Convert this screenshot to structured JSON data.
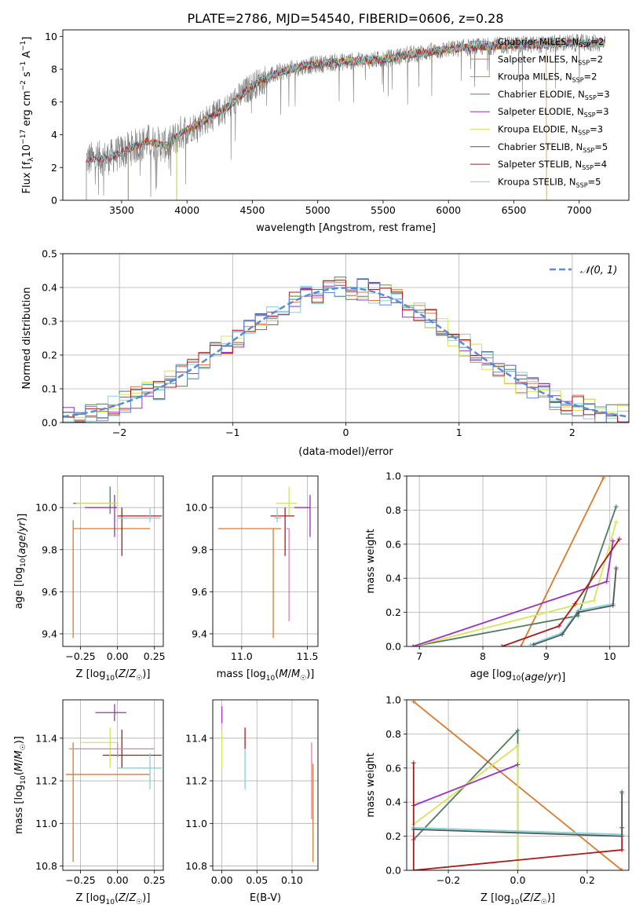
{
  "figure_title": "PLATE=2786, MJD=54540, FIBERID=0606, z=0.28",
  "colors": {
    "chabrier_miles": "#5b8bd4",
    "salpeter_miles": "#e8743b",
    "kroupa_miles": "#c58f2a",
    "chabrier_elodie": "#4f7d5e",
    "salpeter_elodie": "#9b30c0",
    "kroupa_elodie": "#d6e55a",
    "chabrier_stelib": "#555555",
    "salpeter_stelib": "#b01818",
    "kroupa_stelib": "#7ed3dc",
    "gaussian": "#5b8bd4",
    "orange": "#d97a2e",
    "pink": "#e87aa8"
  },
  "chart_data": [
    {
      "id": "spectrum",
      "type": "line",
      "xlabel": "wavelength [Angstrom, rest frame]",
      "ylabel": "Flux [f",
      "ylabel_sub": "λ",
      "ylabel_rest": "10",
      "ylabel_exp": "−17",
      "ylabel_unit": " erg cm",
      "ylabel_unit_exp": "−2",
      "ylabel_s": " s",
      "ylabel_s_exp": "−1",
      "ylabel_a": " A",
      "ylabel_a_exp": "−1",
      "ylabel_close": "]",
      "xlim": [
        3050,
        7380
      ],
      "ylim": [
        0,
        10.4
      ],
      "xticks": [
        3500,
        4000,
        4500,
        5000,
        5500,
        6000,
        6500,
        7000
      ],
      "yticks": [
        0,
        2,
        4,
        6,
        8,
        10
      ],
      "continuum": [
        [
          3230,
          2.5
        ],
        [
          3400,
          2.6
        ],
        [
          3550,
          3.1
        ],
        [
          3700,
          3.6
        ],
        [
          3850,
          3.3
        ],
        [
          3950,
          4.1
        ],
        [
          4100,
          4.7
        ],
        [
          4300,
          5.6
        ],
        [
          4500,
          7.0
        ],
        [
          4700,
          7.8
        ],
        [
          4900,
          8.2
        ],
        [
          5100,
          8.4
        ],
        [
          5300,
          8.5
        ],
        [
          5500,
          8.6
        ],
        [
          5700,
          8.9
        ],
        [
          5900,
          9.1
        ],
        [
          6100,
          9.3
        ],
        [
          6300,
          9.4
        ],
        [
          6500,
          9.5
        ],
        [
          6700,
          9.5
        ],
        [
          6900,
          9.6
        ],
        [
          7100,
          9.6
        ],
        [
          7200,
          9.6
        ]
      ],
      "legend": [
        {
          "imf": "Chabrier MILES, N",
          "n": "=2",
          "color_key": "chabrier_miles"
        },
        {
          "imf": "Salpeter MILES, N",
          "n": "=2",
          "color_key": "salpeter_miles"
        },
        {
          "imf": "Kroupa MILES, N",
          "n": "=2",
          "color_key": "kroupa_miles"
        },
        {
          "imf": "Chabrier ELODIE, N",
          "n": "=3",
          "color_key": "chabrier_elodie"
        },
        {
          "imf": "Salpeter ELODIE, N",
          "n": "=3",
          "color_key": "salpeter_elodie"
        },
        {
          "imf": "Kroupa ELODIE, N",
          "n": "=3",
          "color_key": "kroupa_elodie"
        },
        {
          "imf": "Chabrier STELIB, N",
          "n": "=5",
          "color_key": "chabrier_stelib"
        },
        {
          "imf": "Salpeter STELIB, N",
          "n": "=4",
          "color_key": "salpeter_stelib"
        },
        {
          "imf": "Kroupa STELIB, N",
          "n": "=5",
          "color_key": "kroupa_stelib"
        }
      ],
      "legend_sub": "SSP",
      "legend_placement": "right",
      "grid": false
    },
    {
      "id": "residuals",
      "type": "histogram",
      "xlabel": "(data-model)/error",
      "ylabel": "Normed distribution",
      "xlim": [
        -2.5,
        2.5
      ],
      "ylim": [
        0,
        0.5
      ],
      "xticks": [
        -2,
        -1,
        0,
        1,
        2
      ],
      "xtick_labels": [
        "−2",
        "−1",
        "0",
        "1",
        "2"
      ],
      "yticks": [
        0.0,
        0.1,
        0.2,
        0.3,
        0.4,
        0.5
      ],
      "ytick_labels": [
        "0.0",
        "0.1",
        "0.2",
        "0.3",
        "0.4",
        "0.5"
      ],
      "legend_label": "𝒩(0, 1)",
      "legend_placement": "top-right",
      "grid": true,
      "bin_width": 0.1
    },
    {
      "id": "age_vs_z",
      "type": "errorbar",
      "xlabel": "Z [log",
      "xlabel_sub": "10",
      "xlabel_rest": "(Z/Z",
      "xlabel_sun_sub": "☉",
      "xlabel_close": ")]",
      "ylabel": "age  [log",
      "ylabel_sub": "10",
      "ylabel_rest": "(age/yr)]",
      "xlim": [
        -0.37,
        0.31
      ],
      "ylim": [
        9.34,
        10.15
      ],
      "xticks": [
        -0.25,
        0.0,
        0.25
      ],
      "xtick_labels": [
        "−0.25",
        "0.00",
        "0.25"
      ],
      "yticks": [
        9.4,
        9.6,
        9.8,
        10.0
      ],
      "ytick_labels": [
        "9.4",
        "9.6",
        "9.8",
        "10.0"
      ],
      "points": [
        {
          "x": -0.05,
          "y": 10.02,
          "xlo": -0.3,
          "xhi": 0.0,
          "ylo": 9.97,
          "yhi": 10.1,
          "color_key": "chabrier_elodie"
        },
        {
          "x": -0.3,
          "y": 9.9,
          "xlo": -0.3,
          "xhi": 0.22,
          "ylo": 9.38,
          "yhi": 9.94,
          "color_key": "orange"
        },
        {
          "x": 0.03,
          "y": 9.96,
          "xlo": 0.0,
          "xhi": 0.3,
          "ylo": 9.77,
          "yhi": 10.0,
          "color_key": "salpeter_stelib"
        },
        {
          "x": 0.22,
          "y": 9.95,
          "xlo": 0.0,
          "xhi": 0.29,
          "ylo": 9.93,
          "yhi": 10.0,
          "color_key": "kroupa_stelib"
        },
        {
          "x": -0.02,
          "y": 10.0,
          "xlo": -0.22,
          "xhi": 0.0,
          "ylo": 9.86,
          "yhi": 10.06,
          "color_key": "salpeter_elodie"
        },
        {
          "x": 0.0,
          "y": 10.02,
          "xlo": -0.28,
          "xhi": 0.0,
          "ylo": 9.96,
          "yhi": 10.1,
          "color_key": "kroupa_elodie"
        }
      ]
    },
    {
      "id": "age_vs_mass",
      "type": "errorbar",
      "xlabel": "mass [log",
      "xlabel_sub": "10",
      "xlabel_rest": "(M/M",
      "xlabel_sun_sub": "☉",
      "xlabel_close": ")]",
      "xlim": [
        10.78,
        11.58
      ],
      "ylim": [
        9.34,
        10.15
      ],
      "xticks": [
        11.0,
        11.5
      ],
      "xtick_labels": [
        "11.0",
        "11.5"
      ],
      "yticks": [
        9.4,
        9.6,
        9.8,
        10.0
      ],
      "ytick_labels": [
        "9.4",
        "9.6",
        "9.8",
        "10.0"
      ],
      "points": [
        {
          "x": 11.24,
          "y": 9.9,
          "xlo": 10.82,
          "xhi": 11.3,
          "ylo": 9.38,
          "yhi": 9.9,
          "color_key": "orange"
        },
        {
          "x": 11.36,
          "y": 10.02,
          "xlo": 11.26,
          "xhi": 11.42,
          "ylo": 9.96,
          "yhi": 10.1,
          "color_key": "kroupa_elodie"
        },
        {
          "x": 11.33,
          "y": 9.96,
          "xlo": 11.22,
          "xhi": 11.4,
          "ylo": 9.77,
          "yhi": 10.0,
          "color_key": "salpeter_stelib"
        },
        {
          "x": 11.27,
          "y": 9.95,
          "xlo": 11.25,
          "xhi": 11.3,
          "ylo": 9.93,
          "yhi": 10.0,
          "color_key": "kroupa_stelib"
        },
        {
          "x": 11.52,
          "y": 10.0,
          "xlo": 11.4,
          "xhi": 11.52,
          "ylo": 9.86,
          "yhi": 10.06,
          "color_key": "salpeter_elodie"
        },
        {
          "x": 11.36,
          "y": 9.9,
          "xlo": 11.34,
          "xhi": 11.36,
          "ylo": 9.46,
          "yhi": 9.9,
          "color_key": "pink"
        }
      ]
    },
    {
      "id": "weight_vs_age",
      "type": "line",
      "xlabel": "age  [log",
      "xlabel_sub": "10",
      "xlabel_rest": "(age/yr)]",
      "ylabel": "mass weight",
      "xlim": [
        6.8,
        10.3
      ],
      "ylim": [
        0,
        1.0
      ],
      "xticks": [
        7,
        8,
        9,
        10
      ],
      "yticks": [
        0.0,
        0.2,
        0.4,
        0.6,
        0.8,
        1.0
      ],
      "ytick_labels": [
        "0.0",
        "0.2",
        "0.4",
        "0.6",
        "0.8",
        "1.0"
      ],
      "grid": true,
      "series": [
        {
          "color_key": "orange",
          "x": [
            8.6,
            9.9
          ],
          "y": [
            0.0,
            0.99
          ]
        },
        {
          "color_key": "chabrier_elodie",
          "x": [
            6.9,
            9.5,
            10.1
          ],
          "y": [
            0.0,
            0.18,
            0.82
          ]
        },
        {
          "color_key": "kroupa_elodie",
          "x": [
            6.9,
            9.75,
            10.1
          ],
          "y": [
            0.0,
            0.27,
            0.73
          ]
        },
        {
          "color_key": "salpeter_elodie",
          "x": [
            6.9,
            9.95,
            10.05
          ],
          "y": [
            0.0,
            0.38,
            0.62
          ]
        },
        {
          "color_key": "salpeter_stelib",
          "x": [
            8.3,
            9.2,
            9.45,
            10.15
          ],
          "y": [
            0.0,
            0.12,
            0.25,
            0.63
          ]
        },
        {
          "color_key": "kroupa_stelib",
          "x": [
            8.75,
            9.25,
            9.5,
            10.05,
            10.1
          ],
          "y": [
            0.01,
            0.08,
            0.21,
            0.25,
            0.45
          ]
        },
        {
          "color_key": "chabrier_stelib",
          "x": [
            8.8,
            9.25,
            9.5,
            10.05,
            10.1
          ],
          "y": [
            0.01,
            0.07,
            0.2,
            0.24,
            0.46
          ]
        }
      ]
    },
    {
      "id": "mass_vs_z",
      "type": "errorbar",
      "xlabel": "Z [log",
      "xlabel_sub": "10",
      "xlabel_rest": "(Z/Z",
      "xlabel_sun_sub": "☉",
      "xlabel_close": ")]",
      "ylabel": "mass [log",
      "ylabel_sub": "10",
      "ylabel_rest": "(M/M",
      "ylabel_sun_sub": "☉",
      "ylabel_close": ")]",
      "xlim": [
        -0.37,
        0.31
      ],
      "ylim": [
        10.78,
        11.58
      ],
      "xticks": [
        -0.25,
        0.0,
        0.25
      ],
      "xtick_labels": [
        "−0.25",
        "0.00",
        "0.25"
      ],
      "yticks": [
        10.8,
        11.0,
        11.2,
        11.4
      ],
      "ytick_labels": [
        "10.8",
        "11.0",
        "11.2",
        "11.4"
      ],
      "points": [
        {
          "x": -0.3,
          "y": 11.23,
          "xlo": -0.35,
          "xhi": 0.22,
          "ylo": 10.82,
          "yhi": 11.38,
          "color_key": "orange"
        },
        {
          "x": 0.03,
          "y": 11.32,
          "xlo": -0.1,
          "xhi": 0.3,
          "ylo": 11.26,
          "yhi": 11.44,
          "color_key": "salpeter_stelib"
        },
        {
          "x": -0.02,
          "y": 11.52,
          "xlo": -0.15,
          "xhi": 0.06,
          "ylo": 11.48,
          "yhi": 11.56,
          "color_key": "salpeter_elodie"
        },
        {
          "x": -0.05,
          "y": 11.38,
          "xlo": -0.25,
          "xhi": 0.0,
          "ylo": 11.26,
          "yhi": 11.45,
          "color_key": "kroupa_elodie"
        },
        {
          "x": 0.22,
          "y": 11.26,
          "xlo": 0.0,
          "xhi": 0.3,
          "ylo": 11.16,
          "yhi": 11.33,
          "color_key": "kroupa_stelib"
        },
        {
          "x": 0.0,
          "y": 11.35,
          "xlo": -0.33,
          "xhi": 0.25,
          "ylo": 11.31,
          "yhi": 11.38,
          "color_key": "pink"
        }
      ]
    },
    {
      "id": "mass_vs_ebv",
      "type": "errorbar",
      "xlabel": "E(B-V)",
      "xlim": [
        -0.013,
        0.137
      ],
      "ylim": [
        10.78,
        11.58
      ],
      "xticks": [
        0.0,
        0.05,
        0.1
      ],
      "xtick_labels": [
        "0.00",
        "0.05",
        "0.10"
      ],
      "yticks": [
        10.8,
        11.0,
        11.2,
        11.4
      ],
      "ytick_labels": [
        "10.8",
        "11.0",
        "11.2",
        "11.4"
      ],
      "points": [
        {
          "x": 0.0,
          "y": 11.52,
          "ylo": 11.47,
          "yhi": 11.55,
          "color_key": "salpeter_elodie"
        },
        {
          "x": 0.0,
          "y": 11.36,
          "ylo": 11.26,
          "yhi": 11.43,
          "color_key": "kroupa_elodie"
        },
        {
          "x": 0.033,
          "y": 11.4,
          "ylo": 11.35,
          "yhi": 11.45,
          "color_key": "salpeter_stelib"
        },
        {
          "x": 0.033,
          "y": 11.26,
          "ylo": 11.16,
          "yhi": 11.35,
          "color_key": "kroupa_stelib"
        },
        {
          "x": 0.128,
          "y": 11.2,
          "ylo": 11.02,
          "yhi": 11.38,
          "color_key": "pink"
        },
        {
          "x": 0.13,
          "y": 11.05,
          "ylo": 10.82,
          "yhi": 11.28,
          "color_key": "orange"
        }
      ]
    },
    {
      "id": "weight_vs_z",
      "type": "line",
      "xlabel": "Z [log",
      "xlabel_sub": "10",
      "xlabel_rest": "(Z/Z",
      "xlabel_sun_sub": "☉",
      "xlabel_close": ")]",
      "ylabel": "mass weight",
      "xlim": [
        -0.32,
        0.32
      ],
      "ylim": [
        0,
        1.0
      ],
      "xticks": [
        -0.2,
        0.0,
        0.2
      ],
      "xtick_labels": [
        "−0.2",
        "0.0",
        "0.2"
      ],
      "yticks": [
        0.0,
        0.2,
        0.4,
        0.6,
        0.8,
        1.0
      ],
      "ytick_labels": [
        "0.0",
        "0.2",
        "0.4",
        "0.6",
        "0.8",
        "1.0"
      ],
      "grid": true,
      "series": [
        {
          "color_key": "orange",
          "x": [
            -0.3,
            0.3
          ],
          "y": [
            0.99,
            0.0
          ]
        },
        {
          "color_key": "chabrier_elodie",
          "x": [
            -0.3,
            0.0,
            0.0
          ],
          "y": [
            0.18,
            0.82,
            0.0
          ]
        },
        {
          "color_key": "kroupa_elodie",
          "x": [
            -0.3,
            0.0,
            0.0
          ],
          "y": [
            0.27,
            0.73,
            0.0
          ]
        },
        {
          "color_key": "salpeter_elodie",
          "x": [
            -0.3,
            0.0
          ],
          "y": [
            0.38,
            0.62
          ]
        },
        {
          "color_key": "salpeter_stelib",
          "x": [
            -0.3,
            -0.3,
            0.3,
            0.3
          ],
          "y": [
            0.63,
            0.0,
            0.12,
            0.25
          ]
        },
        {
          "color_key": "kroupa_stelib",
          "x": [
            -0.3,
            0.3,
            0.3
          ],
          "y": [
            0.25,
            0.21,
            0.45
          ]
        },
        {
          "color_key": "chabrier_stelib",
          "x": [
            -0.3,
            0.3,
            0.3
          ],
          "y": [
            0.24,
            0.2,
            0.46
          ]
        }
      ]
    }
  ]
}
